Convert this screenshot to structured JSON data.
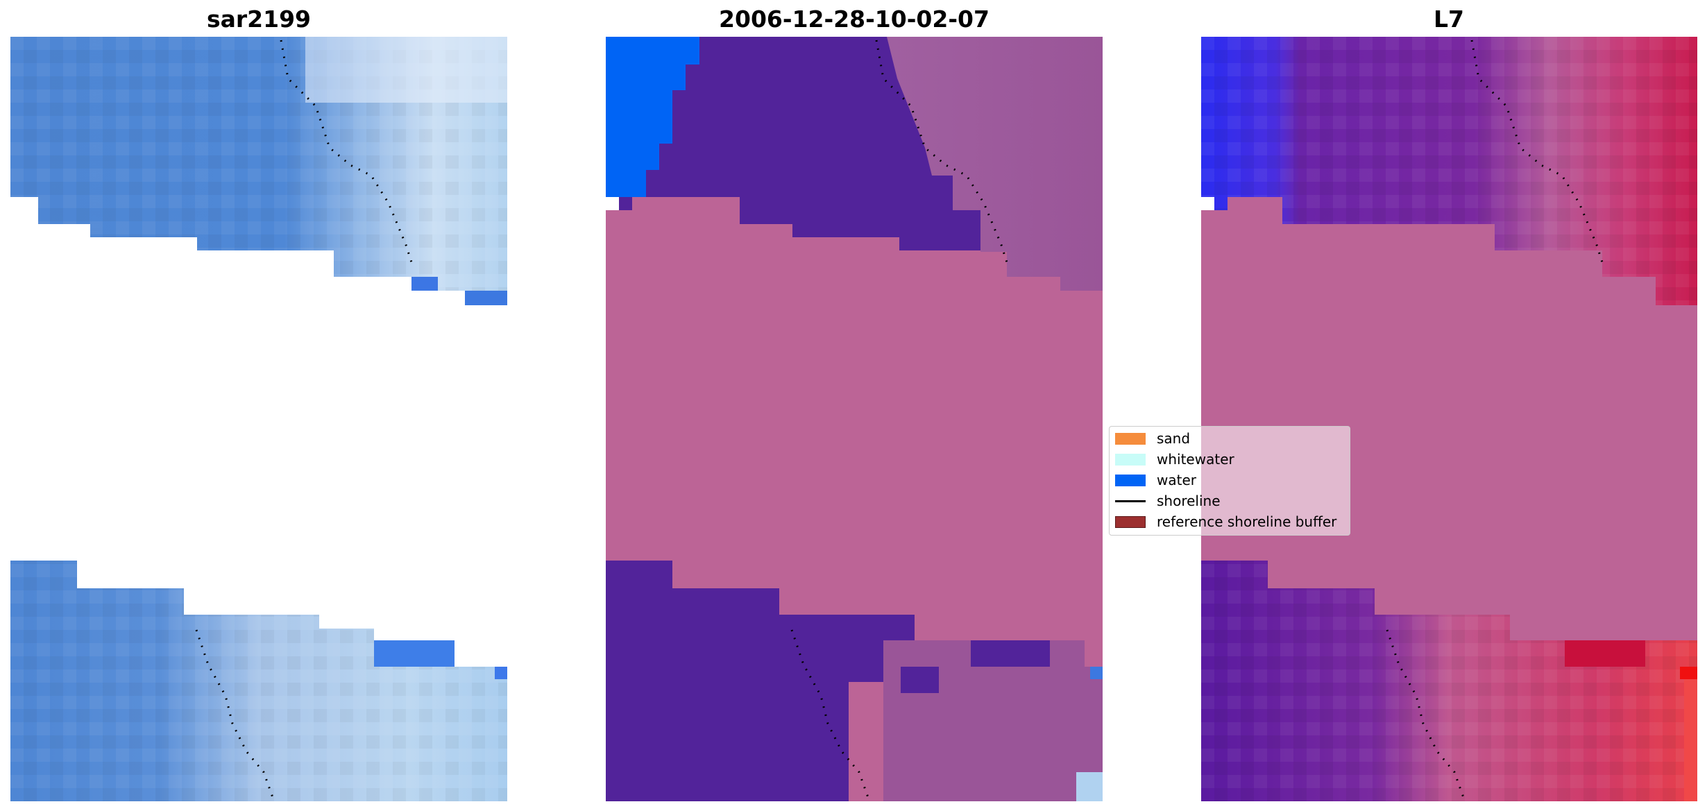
{
  "panels": [
    {
      "id": "p1",
      "title": "sar2199",
      "image": "RGB satellite view of coastline"
    },
    {
      "id": "p2",
      "title": "2006-12-28-10-02-07",
      "image": "classified image overlay"
    },
    {
      "id": "p3",
      "title": "L7",
      "image": "index image overlay"
    }
  ],
  "legend": {
    "items": [
      {
        "label": "sand",
        "color": "#f58c3c",
        "type": "patch"
      },
      {
        "label": "whitewater",
        "color": "#c8fcf8",
        "type": "patch"
      },
      {
        "label": "water",
        "color": "#0064f5",
        "type": "patch"
      },
      {
        "label": "shoreline",
        "color": "#000000",
        "type": "line"
      },
      {
        "label": "reference shoreline buffer",
        "color": "#9c2f2f",
        "type": "patch"
      }
    ]
  },
  "colors": {
    "buffer": "#bc6496",
    "classified_water_sand_mix": "#52239a",
    "water": "#0064f5",
    "sar_blue": "#4a86d6"
  }
}
